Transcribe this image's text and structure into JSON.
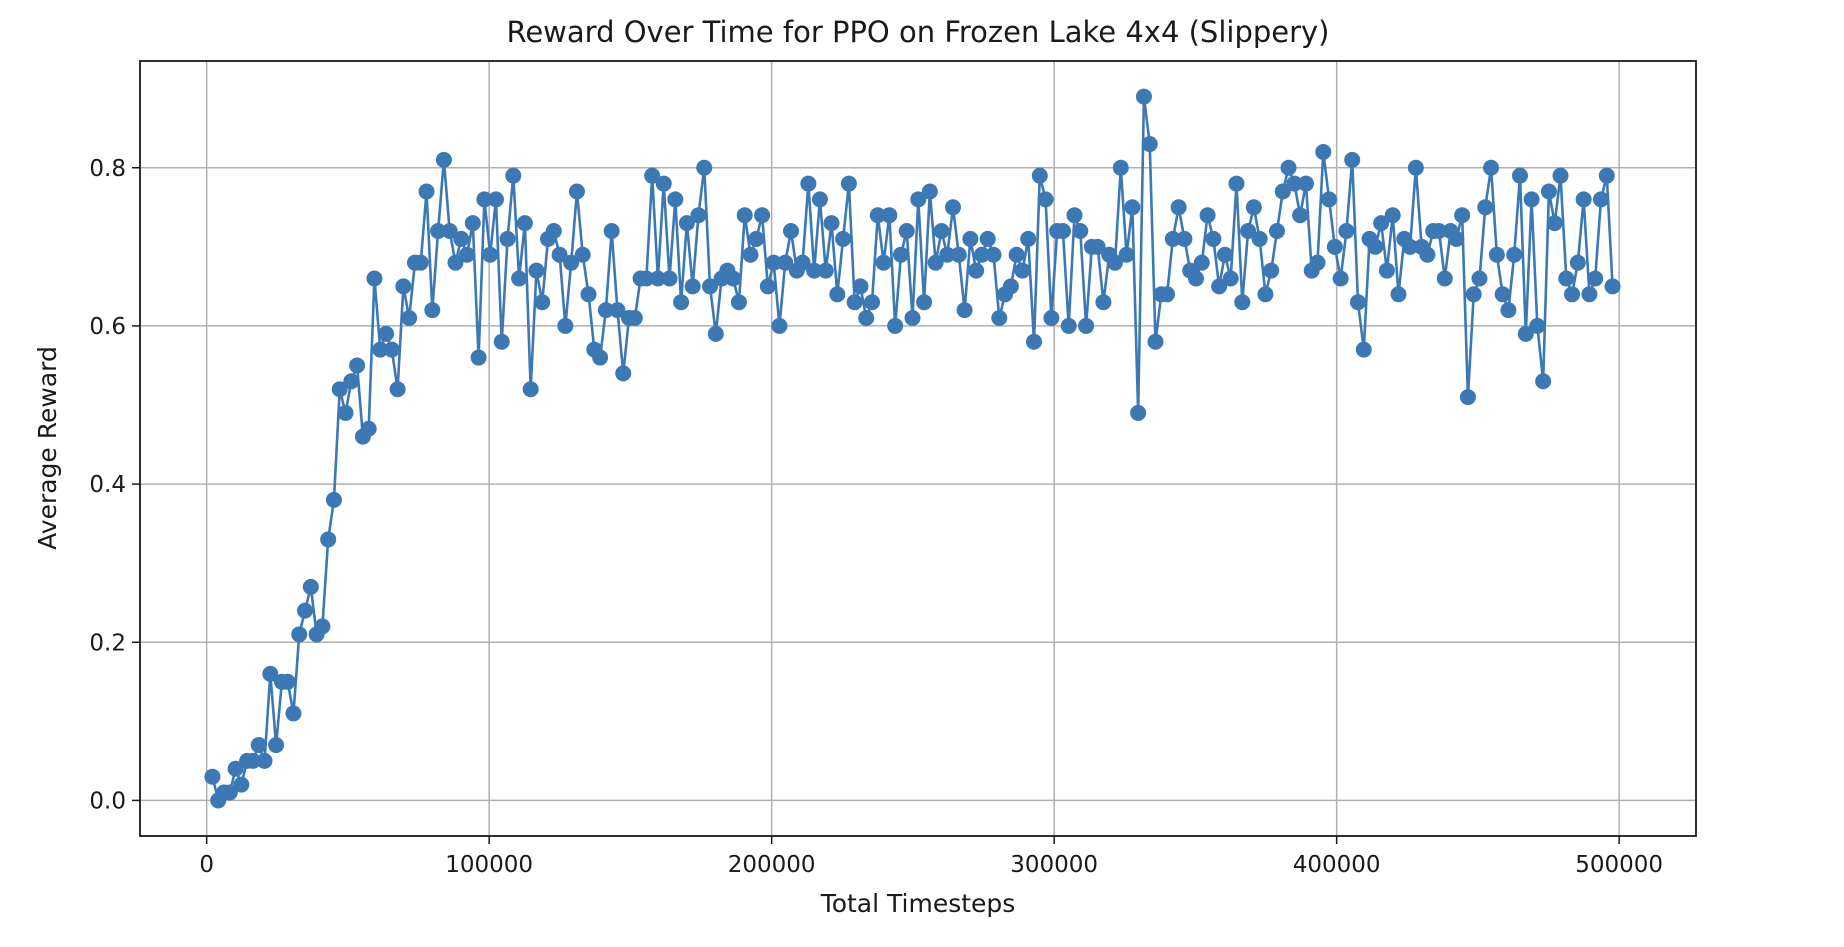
{
  "chart_data": {
    "type": "line",
    "title": "Reward Over Time for PPO on Frozen Lake 4x4 (Slippery)",
    "xlabel": "Total Timesteps",
    "ylabel": "Average Reward",
    "xlim": [
      -23600,
      527200
    ],
    "ylim": [
      -0.045,
      0.935
    ],
    "xticks": [
      0,
      100000,
      200000,
      300000,
      400000,
      500000
    ],
    "xtick_labels": [
      "0",
      "100000",
      "200000",
      "300000",
      "400000",
      "500000"
    ],
    "yticks": [
      0.0,
      0.2,
      0.4,
      0.6,
      0.8
    ],
    "ytick_labels": [
      "0.0",
      "0.2",
      "0.4",
      "0.6",
      "0.8"
    ],
    "grid": true,
    "marker": "circle",
    "color": "#3c78b4",
    "x_start": 2048,
    "x_step": 2048,
    "series": [
      {
        "values": [
          0.03,
          0.0,
          0.01,
          0.01,
          0.04,
          0.02,
          0.05,
          0.05,
          0.07,
          0.05,
          0.16,
          0.07,
          0.15,
          0.15,
          0.11,
          0.21,
          0.24,
          0.27,
          0.21,
          0.22,
          0.33,
          0.38,
          0.52,
          0.49,
          0.53,
          0.55,
          0.46,
          0.47,
          0.66,
          0.57,
          0.59,
          0.57,
          0.52,
          0.65,
          0.61,
          0.68,
          0.68,
          0.77,
          0.62,
          0.72,
          0.81,
          0.72,
          0.68,
          0.71,
          0.69,
          0.73,
          0.56,
          0.76,
          0.69,
          0.76,
          0.58,
          0.71,
          0.79,
          0.66,
          0.73,
          0.52,
          0.67,
          0.63,
          0.71,
          0.72,
          0.69,
          0.6,
          0.68,
          0.77,
          0.69,
          0.64,
          0.57,
          0.56,
          0.62,
          0.72,
          0.62,
          0.54,
          0.61,
          0.61,
          0.66,
          0.66,
          0.79,
          0.66,
          0.78,
          0.66,
          0.76,
          0.63,
          0.73,
          0.65,
          0.74,
          0.8,
          0.65,
          0.59,
          0.66,
          0.67,
          0.66,
          0.63,
          0.74,
          0.69,
          0.71,
          0.74,
          0.65,
          0.68,
          0.6,
          0.68,
          0.72,
          0.67,
          0.68,
          0.78,
          0.67,
          0.76,
          0.67,
          0.73,
          0.64,
          0.71,
          0.78,
          0.63,
          0.65,
          0.61,
          0.63,
          0.74,
          0.68,
          0.74,
          0.6,
          0.69,
          0.72,
          0.61,
          0.76,
          0.63,
          0.77,
          0.68,
          0.72,
          0.69,
          0.75,
          0.69,
          0.62,
          0.71,
          0.67,
          0.69,
          0.71,
          0.69,
          0.61,
          0.64,
          0.65,
          0.69,
          0.67,
          0.71,
          0.58,
          0.79,
          0.76,
          0.61,
          0.72,
          0.72,
          0.6,
          0.74,
          0.72,
          0.6,
          0.7,
          0.7,
          0.63,
          0.69,
          0.68,
          0.8,
          0.69,
          0.75,
          0.49,
          0.89,
          0.83,
          0.58,
          0.64,
          0.64,
          0.71,
          0.75,
          0.71,
          0.67,
          0.66,
          0.68,
          0.74,
          0.71,
          0.65,
          0.69,
          0.66,
          0.78,
          0.63,
          0.72,
          0.75,
          0.71,
          0.64,
          0.67,
          0.72,
          0.77,
          0.8,
          0.78,
          0.74,
          0.78,
          0.67,
          0.68,
          0.82,
          0.76,
          0.7,
          0.66,
          0.72,
          0.81,
          0.63,
          0.57,
          0.71,
          0.7,
          0.73,
          0.67,
          0.74,
          0.64,
          0.71,
          0.7,
          0.8,
          0.7,
          0.69,
          0.72,
          0.72,
          0.66,
          0.72,
          0.71,
          0.74,
          0.51,
          0.64,
          0.66,
          0.75,
          0.8,
          0.69,
          0.64,
          0.62,
          0.69,
          0.79,
          0.59,
          0.76,
          0.6,
          0.53,
          0.77,
          0.73,
          0.79,
          0.66,
          0.64,
          0.68,
          0.76,
          0.64,
          0.66,
          0.76,
          0.79,
          0.65
        ]
      }
    ]
  }
}
